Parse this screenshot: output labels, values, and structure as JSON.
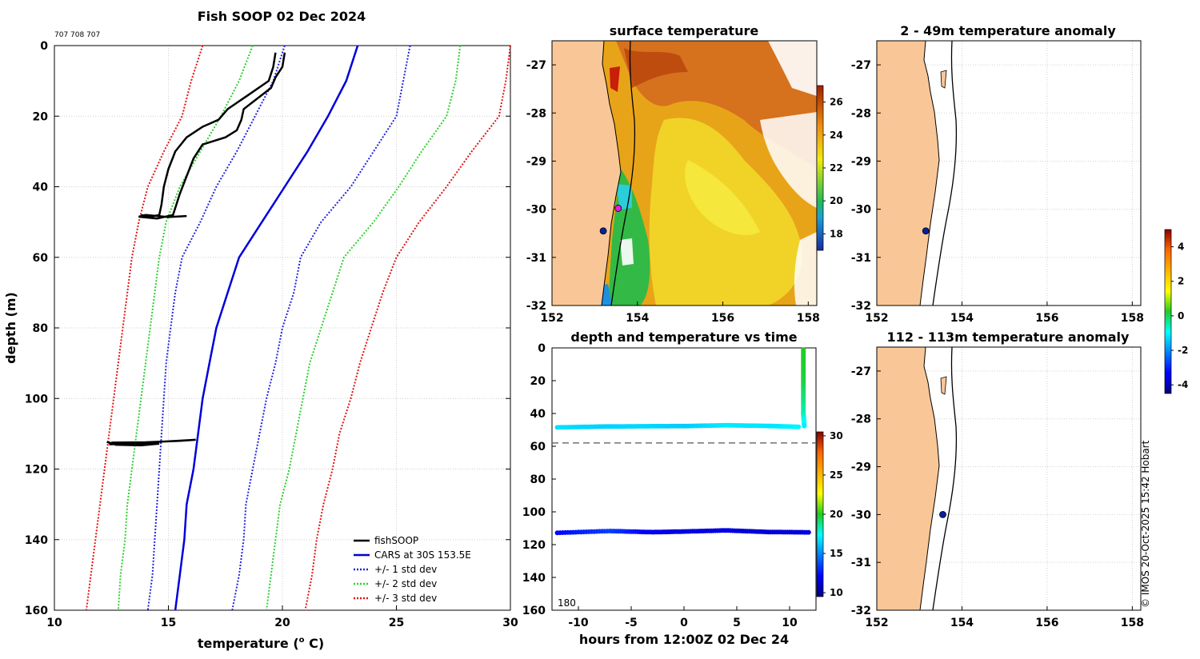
{
  "figure": {
    "title": "Fish SOOP 02 Dec 2024",
    "ids_text": "707 708 707",
    "credit": "© IMOS 20-Oct-2025 15:42 Hobart"
  },
  "colors": {
    "land": "#f9c797",
    "cars": "#0000dd",
    "std1": "#2323e0",
    "std2": "#2bd12b",
    "std3": "#e21414",
    "fish": "#000000"
  },
  "chart_data": [
    {
      "id": "profile",
      "type": "line",
      "xlabel": "temperature (o C)",
      "ylabel": "depth (m)",
      "xlim": [
        10,
        30
      ],
      "ylim": [
        0,
        160
      ],
      "xticks": [
        10,
        15,
        20,
        25,
        30
      ],
      "yticks": [
        0,
        20,
        40,
        60,
        80,
        100,
        120,
        140,
        160
      ],
      "grid": true,
      "legend_position": "bottom-right",
      "legend": [
        "fishSOOP",
        "CARS at 30S 153.5E",
        "+/- 1 std dev",
        "+/- 2 std dev",
        "+/- 3 std dev"
      ],
      "series": [
        {
          "name": "CARS at 30S 153.5E",
          "style": "solid",
          "color": "#0000dd",
          "points": [
            [
              23.3,
              0
            ],
            [
              22.8,
              10
            ],
            [
              22,
              20
            ],
            [
              21.1,
              30
            ],
            [
              20.1,
              40
            ],
            [
              19.1,
              50
            ],
            [
              18.1,
              60
            ],
            [
              17.6,
              70
            ],
            [
              17.1,
              80
            ],
            [
              16.8,
              90
            ],
            [
              16.5,
              100
            ],
            [
              16.3,
              110
            ],
            [
              16.1,
              120
            ],
            [
              15.8,
              130
            ],
            [
              15.7,
              140
            ],
            [
              15.5,
              150
            ],
            [
              15.3,
              160
            ]
          ]
        },
        {
          "name": "+/- 1 std dev",
          "style": "dotted",
          "color": "#2323e0",
          "points": [
            [
              25.6,
              0
            ],
            [
              25.3,
              10
            ],
            [
              25,
              20
            ],
            [
              24,
              30
            ],
            [
              23,
              40
            ],
            [
              21.7,
              50
            ],
            [
              20.8,
              60
            ],
            [
              20.5,
              70
            ],
            [
              20,
              80
            ],
            [
              19.7,
              90
            ],
            [
              19.3,
              100
            ],
            [
              19,
              110
            ],
            [
              18.7,
              120
            ],
            [
              18.4,
              130
            ],
            [
              18.3,
              140
            ],
            [
              18.1,
              150
            ],
            [
              17.8,
              160
            ]
          ]
        },
        {
          "name": "+/- 1 std dev lower",
          "style": "dotted",
          "color": "#2323e0",
          "points": [
            [
              20.1,
              0
            ],
            [
              19.6,
              10
            ],
            [
              18.8,
              20
            ],
            [
              18,
              30
            ],
            [
              17.1,
              40
            ],
            [
              16.4,
              50
            ],
            [
              15.6,
              60
            ],
            [
              15.3,
              70
            ],
            [
              15.1,
              80
            ],
            [
              14.9,
              90
            ],
            [
              14.8,
              100
            ],
            [
              14.7,
              110
            ],
            [
              14.6,
              120
            ],
            [
              14.5,
              130
            ],
            [
              14.4,
              140
            ],
            [
              14.3,
              150
            ],
            [
              14.1,
              160
            ]
          ]
        },
        {
          "name": "+/- 2 std dev",
          "style": "dotted",
          "color": "#2bd12b",
          "points": [
            [
              27.8,
              0
            ],
            [
              27.6,
              10
            ],
            [
              27.2,
              20
            ],
            [
              26.1,
              30
            ],
            [
              25.1,
              40
            ],
            [
              24,
              50
            ],
            [
              22.7,
              60
            ],
            [
              22.2,
              70
            ],
            [
              21.7,
              80
            ],
            [
              21.2,
              90
            ],
            [
              20.9,
              100
            ],
            [
              20.6,
              110
            ],
            [
              20.3,
              120
            ],
            [
              19.9,
              130
            ],
            [
              19.7,
              140
            ],
            [
              19.5,
              150
            ],
            [
              19.3,
              160
            ]
          ]
        },
        {
          "name": "+/- 2 std dev lower",
          "style": "dotted",
          "color": "#2bd12b",
          "points": [
            [
              18.7,
              0
            ],
            [
              18.1,
              10
            ],
            [
              17.3,
              20
            ],
            [
              16.4,
              30
            ],
            [
              15.5,
              40
            ],
            [
              14.9,
              50
            ],
            [
              14.6,
              60
            ],
            [
              14.4,
              70
            ],
            [
              14.2,
              80
            ],
            [
              14,
              90
            ],
            [
              13.8,
              100
            ],
            [
              13.6,
              110
            ],
            [
              13.4,
              120
            ],
            [
              13.2,
              130
            ],
            [
              13.1,
              140
            ],
            [
              12.9,
              150
            ],
            [
              12.8,
              160
            ]
          ]
        },
        {
          "name": "+/- 3 std dev",
          "style": "dotted",
          "color": "#e21414",
          "points": [
            [
              30,
              0
            ],
            [
              29.8,
              10
            ],
            [
              29.5,
              20
            ],
            [
              28.3,
              30
            ],
            [
              27.2,
              40
            ],
            [
              26,
              50
            ],
            [
              25,
              60
            ],
            [
              24.4,
              70
            ],
            [
              23.9,
              80
            ],
            [
              23.4,
              90
            ],
            [
              23,
              100
            ],
            [
              22.5,
              110
            ],
            [
              22.2,
              120
            ],
            [
              21.8,
              130
            ],
            [
              21.5,
              140
            ],
            [
              21.3,
              150
            ],
            [
              21,
              160
            ]
          ]
        },
        {
          "name": "+/- 3 std dev lower",
          "style": "dotted",
          "color": "#e21414",
          "points": [
            [
              16.5,
              0
            ],
            [
              16,
              10
            ],
            [
              15.6,
              20
            ],
            [
              14.8,
              30
            ],
            [
              14.1,
              40
            ],
            [
              13.7,
              50
            ],
            [
              13.4,
              60
            ],
            [
              13.2,
              70
            ],
            [
              13,
              80
            ],
            [
              12.8,
              90
            ],
            [
              12.6,
              100
            ],
            [
              12.4,
              110
            ],
            [
              12.2,
              120
            ],
            [
              12,
              130
            ],
            [
              11.8,
              140
            ],
            [
              11.6,
              150
            ],
            [
              11.4,
              160
            ]
          ]
        },
        {
          "name": "fishSOOP",
          "style": "solid",
          "color": "#000000",
          "points": [
            [
              19.7,
              2
            ],
            [
              19.6,
              6
            ],
            [
              19.4,
              10
            ],
            [
              18.5,
              14
            ],
            [
              17.6,
              18
            ],
            [
              17.2,
              21
            ],
            [
              16.5,
              23
            ],
            [
              15.8,
              26
            ],
            [
              15.3,
              30
            ],
            [
              15,
              35
            ],
            [
              14.8,
              40
            ],
            [
              14.7,
              45
            ],
            [
              14.6,
              48
            ],
            [
              14.2,
              48.5
            ],
            [
              13.8,
              48
            ]
          ]
        },
        {
          "name": "fishSOOP 2",
          "style": "solid",
          "color": "#000000",
          "points": [
            [
              20.1,
              2
            ],
            [
              20,
              6
            ],
            [
              19.7,
              9
            ],
            [
              19.5,
              12
            ],
            [
              18.9,
              15
            ],
            [
              18.3,
              18
            ],
            [
              18.2,
              21
            ],
            [
              18,
              24
            ],
            [
              17.5,
              26
            ],
            [
              16.5,
              28
            ],
            [
              16.1,
              32
            ],
            [
              15.8,
              37
            ],
            [
              15.5,
              42
            ],
            [
              15.3,
              46
            ],
            [
              15.2,
              48
            ],
            [
              14.5,
              49
            ],
            [
              13.7,
              48.5
            ],
            [
              14,
              48
            ],
            [
              15,
              48.6
            ],
            [
              15.8,
              48.3
            ]
          ]
        },
        {
          "name": "fishSOOP 3",
          "style": "solid",
          "color": "#000000",
          "points": [
            [
              12.5,
              112.5
            ],
            [
              14,
              112.4
            ],
            [
              15.5,
              112
            ],
            [
              16.2,
              111.7
            ],
            [
              14.8,
              112.2
            ],
            [
              13.2,
              112.7
            ],
            [
              12.4,
              113
            ],
            [
              13.5,
              112.7
            ],
            [
              14.6,
              112.8
            ],
            [
              13.8,
              113.3
            ],
            [
              12.7,
              113.1
            ],
            [
              12.3,
              112.3
            ]
          ]
        }
      ]
    },
    {
      "id": "sst",
      "type": "heatmap",
      "title": "surface temperature",
      "xlim": [
        152,
        158.2
      ],
      "ylim": [
        -32,
        -26.5
      ],
      "xticks": [
        152,
        154,
        156,
        158
      ],
      "yticks": [
        -27,
        -28,
        -29,
        -30,
        -31,
        -32
      ],
      "colorbar_ticks": [
        18,
        20,
        22,
        24,
        26
      ],
      "colorbar_range": [
        17,
        27
      ],
      "markers": [
        {
          "lon": 153.2,
          "lat": -30.45,
          "color": "#0a1fa0"
        },
        {
          "lon": 153.55,
          "lat": -29.98,
          "color": "#e91ee0"
        }
      ]
    },
    {
      "id": "timeseries",
      "type": "scatter",
      "title": "depth and temperature vs time",
      "xlabel": "hours from 12:00Z 02 Dec 24",
      "xlim": [
        -12.5,
        12.5
      ],
      "ylim": [
        0,
        160
      ],
      "xticks": [
        -10,
        -5,
        0,
        5,
        10
      ],
      "yticks": [
        0,
        20,
        40,
        60,
        80,
        100,
        120,
        140,
        160
      ],
      "annotation": "180",
      "dashed_depth": 58,
      "colorbar_ticks": [
        10,
        15,
        20,
        25,
        30
      ],
      "colorbar_range": [
        9.5,
        30.5
      ],
      "tracks": [
        {
          "name": "shallow",
          "points": [
            [
              -12,
              48.5,
              16.8
            ],
            [
              -8,
              48,
              16.4
            ],
            [
              -4,
              47.8,
              16.6
            ],
            [
              0,
              47.7,
              16.3
            ],
            [
              4,
              47.2,
              17
            ],
            [
              8,
              47.6,
              16.8
            ],
            [
              11,
              48.2,
              17.2
            ]
          ]
        },
        {
          "name": "deep",
          "points": [
            [
              -12,
              112.8,
              12.2
            ],
            [
              -7,
              111.7,
              13.5
            ],
            [
              -3,
              112.4,
              11.8
            ],
            [
              0,
              112,
              11.6
            ],
            [
              4,
              111.3,
              11.5
            ],
            [
              8,
              112.3,
              11.3
            ],
            [
              12,
              112.5,
              11.4
            ]
          ]
        },
        {
          "name": "vertical",
          "points": [
            [
              11.3,
              1,
              20
            ],
            [
              11.3,
              20,
              19.7
            ],
            [
              11.3,
              40,
              18.3
            ],
            [
              11.4,
              48,
              17
            ]
          ]
        }
      ]
    },
    {
      "id": "anom49",
      "type": "heatmap",
      "title": "2 - 49m temperature anomaly",
      "xlim": [
        152,
        158.2
      ],
      "ylim": [
        -32,
        -26.5
      ],
      "xticks": [
        152,
        154,
        156,
        158
      ],
      "yticks": [
        -27,
        -28,
        -29,
        -30,
        -31,
        -32
      ],
      "markers": [
        {
          "lon": 153.15,
          "lat": -30.45,
          "color": "#0a1fa0"
        }
      ]
    },
    {
      "id": "anom113",
      "type": "heatmap",
      "title": "112 - 113m temperature anomaly",
      "xlim": [
        152,
        158.2
      ],
      "ylim": [
        -32,
        -26.5
      ],
      "xticks": [
        152,
        154,
        156,
        158
      ],
      "yticks": [
        -27,
        -28,
        -29,
        -30,
        -31,
        -32
      ],
      "markers": [
        {
          "lon": 153.55,
          "lat": -30,
          "color": "#0a1fa0"
        }
      ]
    },
    {
      "id": "anomaly_colorbar",
      "type": "heatmap",
      "colorbar_ticks": [
        4,
        2,
        0,
        -2,
        -4
      ],
      "colorbar_range": [
        -4.5,
        5
      ]
    }
  ]
}
